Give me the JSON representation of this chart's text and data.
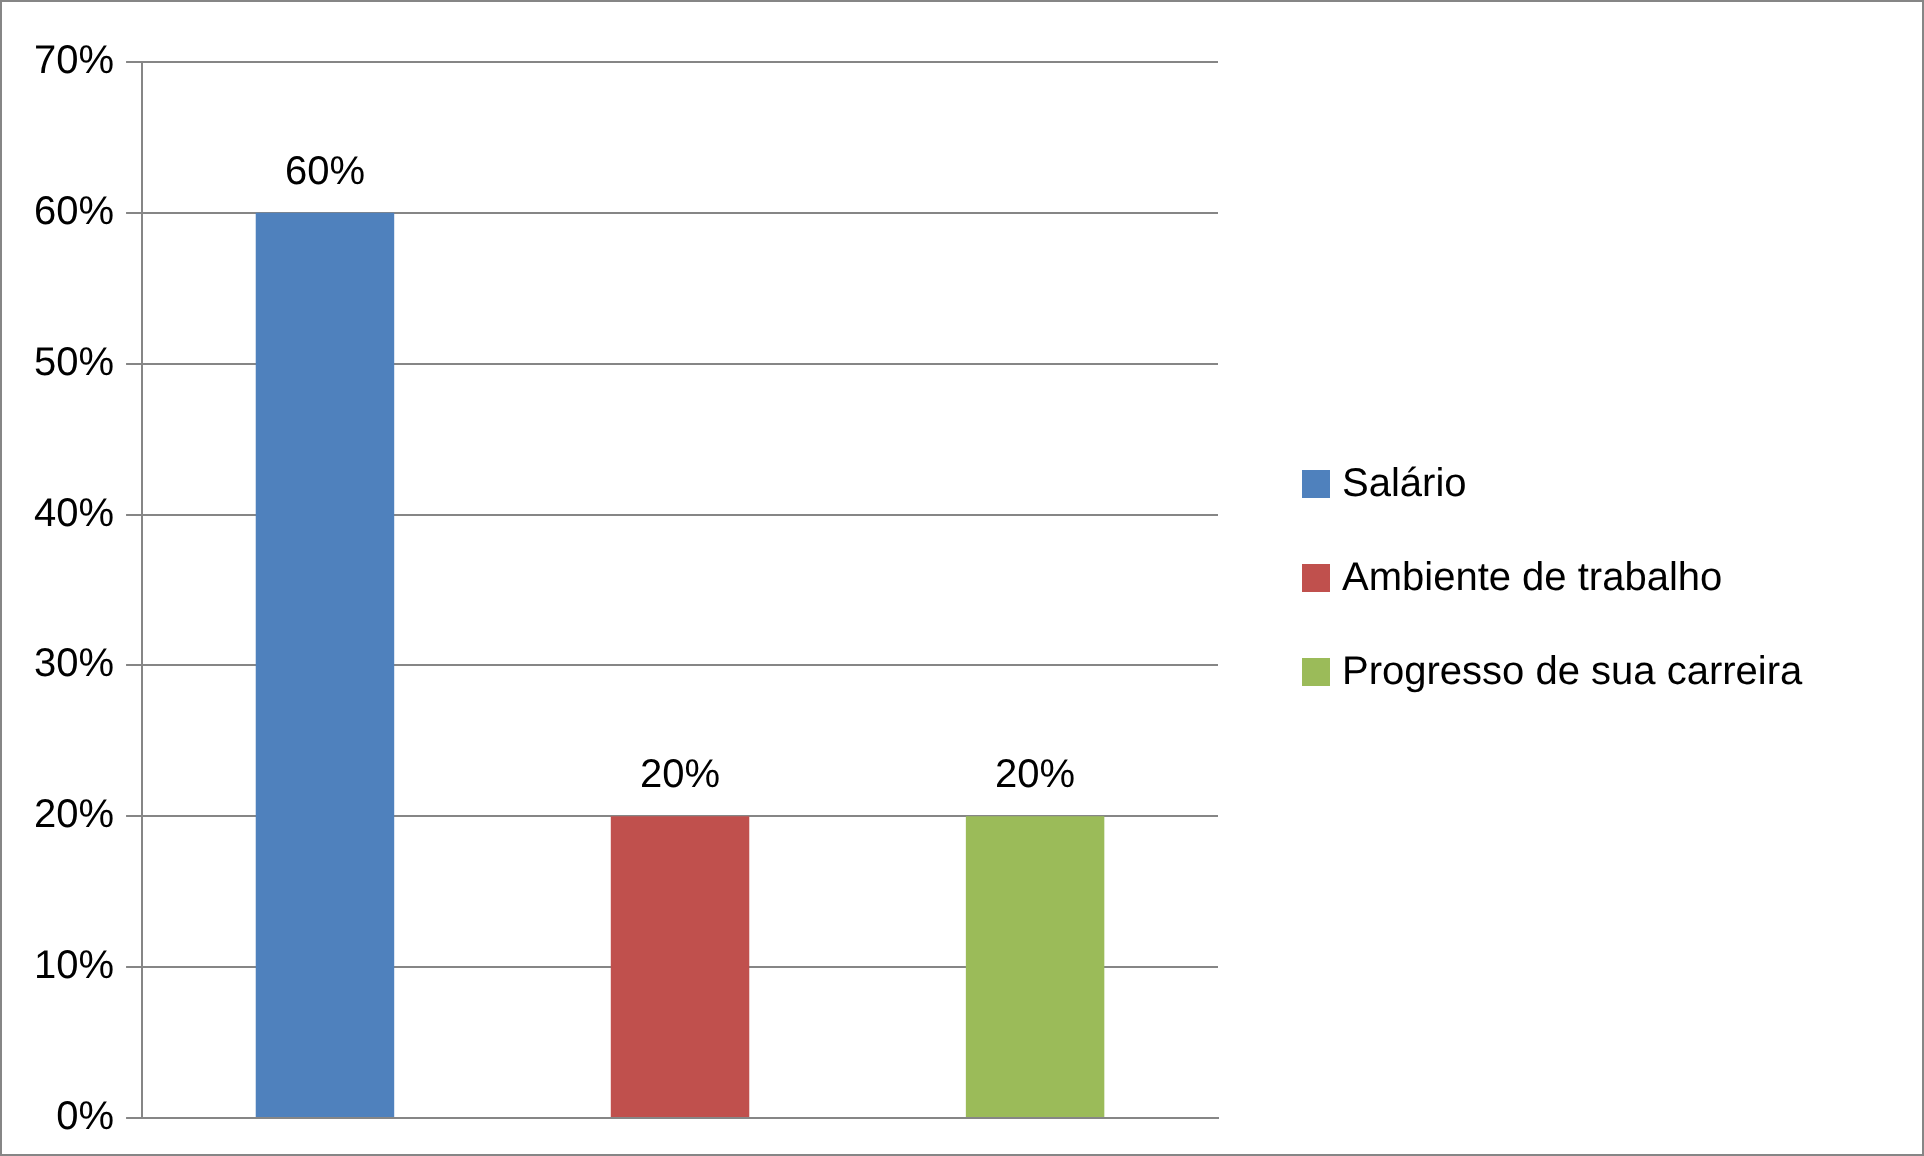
{
  "chart_data": {
    "type": "bar",
    "categories": [
      null
    ],
    "series": [
      {
        "name": "Salário",
        "color": "#4f81bd",
        "values": [
          60
        ],
        "value_labels": [
          "60%"
        ]
      },
      {
        "name": "Ambiente de trabalho",
        "color": "#c0504d",
        "values": [
          20
        ],
        "value_labels": [
          "20%"
        ]
      },
      {
        "name": "Progresso de sua carreira",
        "color": "#9bbb59",
        "values": [
          20
        ],
        "value_labels": [
          "20%"
        ]
      }
    ],
    "ylim": [
      0,
      70
    ],
    "yticks": [
      {
        "value": 0,
        "label": "0%"
      },
      {
        "value": 10,
        "label": "10%"
      },
      {
        "value": 20,
        "label": "20%"
      },
      {
        "value": 30,
        "label": "30%"
      },
      {
        "value": 40,
        "label": "40%"
      },
      {
        "value": 50,
        "label": "50%"
      },
      {
        "value": 60,
        "label": "60%"
      },
      {
        "value": 70,
        "label": "70%"
      }
    ],
    "grid": "y",
    "legend": "right"
  }
}
